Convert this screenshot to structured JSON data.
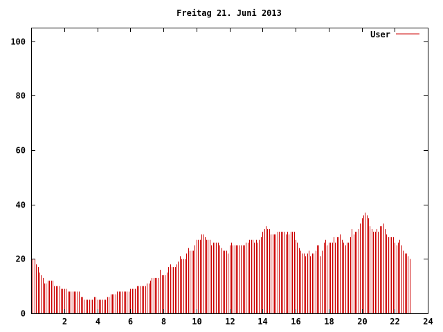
{
  "chart_data": {
    "type": "bar",
    "title": "Freitag 21. Juni 2013",
    "xlabel": "",
    "ylabel": "",
    "xlim": [
      0,
      24
    ],
    "ylim": [
      0,
      105
    ],
    "x_ticks": [
      "2",
      "4",
      "6",
      "8",
      "10",
      "12",
      "14",
      "16",
      "18",
      "20",
      "22",
      "24"
    ],
    "y_ticks": [
      "0",
      "20",
      "40",
      "60",
      "80",
      "100"
    ],
    "grid": false,
    "legend_position": "top-right",
    "series": [
      {
        "name": "User",
        "color": "#cc0000",
        "interval_hours": 0.1,
        "values": [
          20,
          20,
          20,
          18,
          17,
          15,
          14,
          13,
          11,
          11,
          12,
          12,
          12,
          12,
          10,
          10,
          10,
          10,
          9,
          9,
          9,
          9,
          8,
          8,
          8,
          8,
          8,
          8,
          8,
          8,
          6,
          6,
          5,
          5,
          5,
          5,
          5,
          5,
          6,
          6,
          5,
          5,
          5,
          5,
          5,
          5,
          6,
          6,
          7,
          7,
          7,
          7,
          8,
          8,
          8,
          8,
          8,
          8,
          8,
          8,
          9,
          9,
          9,
          9,
          10,
          10,
          10,
          10,
          10,
          10,
          11,
          11,
          12,
          13,
          13,
          13,
          13,
          13,
          16,
          14,
          14,
          14,
          15,
          17,
          18,
          17,
          17,
          17,
          18,
          19,
          21,
          20,
          20,
          20,
          22,
          24,
          23,
          23,
          23,
          25,
          27,
          27,
          27,
          29,
          29,
          28,
          27,
          27,
          27,
          25,
          26,
          26,
          26,
          26,
          25,
          24,
          23,
          23,
          23,
          22,
          25,
          26,
          25,
          25,
          25,
          25,
          25,
          25,
          25,
          25,
          26,
          26,
          27,
          27,
          27,
          26,
          27,
          26,
          27,
          28,
          30,
          31,
          32,
          31,
          31,
          29,
          29,
          29,
          29,
          30,
          30,
          30,
          30,
          30,
          29,
          30,
          29,
          30,
          30,
          30,
          27,
          26,
          24,
          23,
          22,
          22,
          21,
          22,
          23,
          21,
          22,
          22,
          23,
          25,
          25,
          21,
          23,
          26,
          27,
          25,
          26,
          26,
          26,
          28,
          26,
          28,
          28,
          29,
          27,
          26,
          25,
          26,
          26,
          28,
          31,
          29,
          30,
          30,
          31,
          33,
          35,
          36,
          37,
          36,
          35,
          32,
          31,
          30,
          30,
          31,
          30,
          32,
          32,
          33,
          31,
          29,
          28,
          28,
          28,
          28,
          26,
          25,
          26,
          27,
          25,
          23,
          22,
          22,
          21,
          20
        ]
      }
    ]
  }
}
